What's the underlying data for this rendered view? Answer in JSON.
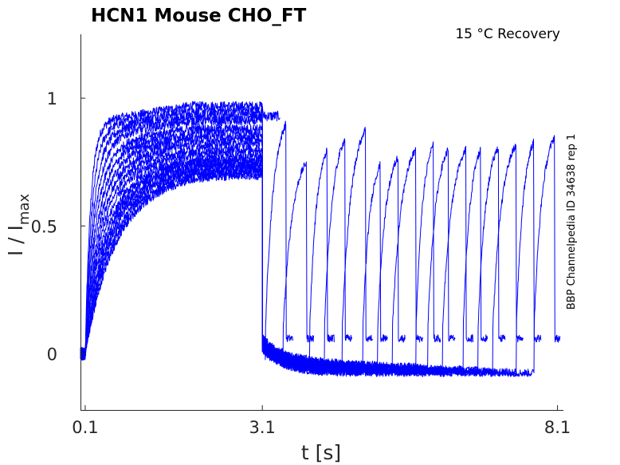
{
  "chart_data": {
    "type": "line",
    "title": "HCN1  Mouse  CHO_FT",
    "annotation": "15 °C  Recovery",
    "side_label": "BBP Channelpedia ID 34638 rep 1",
    "xlabel": "t [s]",
    "ylabel": "I / I",
    "ylabel_sub": "max",
    "x_ticks": [
      {
        "value": 0.1,
        "label": "0.1"
      },
      {
        "value": 3.1,
        "label": "3.1"
      },
      {
        "value": 8.1,
        "label": "8.1"
      }
    ],
    "y_ticks": [
      {
        "value": 0,
        "label": "0"
      },
      {
        "value": 0.5,
        "label": "0.5"
      },
      {
        "value": 1,
        "label": "1"
      }
    ],
    "xlim": [
      0.02,
      8.2
    ],
    "ylim": [
      -0.22,
      1.25
    ],
    "line_color": "#0000ff",
    "series": [
      {
        "prepulse_plateau": 0.97,
        "recovery_end": 3.1,
        "recovery_level": 0.93
      },
      {
        "prepulse_plateau": 0.95,
        "recovery_end": 3.5,
        "recovery_level": 0.9
      },
      {
        "prepulse_plateau": 0.93,
        "recovery_end": 3.85,
        "recovery_level": 0.75
      },
      {
        "prepulse_plateau": 0.91,
        "recovery_end": 4.2,
        "recovery_level": 0.8
      },
      {
        "prepulse_plateau": 0.88,
        "recovery_end": 4.5,
        "recovery_level": 0.84
      },
      {
        "prepulse_plateau": 0.86,
        "recovery_end": 4.85,
        "recovery_level": 0.88
      },
      {
        "prepulse_plateau": 0.84,
        "recovery_end": 5.1,
        "recovery_level": 0.74
      },
      {
        "prepulse_plateau": 0.82,
        "recovery_end": 5.4,
        "recovery_level": 0.77
      },
      {
        "prepulse_plateau": 0.8,
        "recovery_end": 5.7,
        "recovery_level": 0.8
      },
      {
        "prepulse_plateau": 0.78,
        "recovery_end": 6.0,
        "recovery_level": 0.82
      },
      {
        "prepulse_plateau": 0.76,
        "recovery_end": 6.25,
        "recovery_level": 0.8
      },
      {
        "prepulse_plateau": 0.75,
        "recovery_end": 6.55,
        "recovery_level": 0.8
      },
      {
        "prepulse_plateau": 0.74,
        "recovery_end": 6.8,
        "recovery_level": 0.8
      },
      {
        "prepulse_plateau": 0.73,
        "recovery_end": 7.1,
        "recovery_level": 0.81
      },
      {
        "prepulse_plateau": 0.72,
        "recovery_end": 7.4,
        "recovery_level": 0.82
      },
      {
        "prepulse_plateau": 0.71,
        "recovery_end": 7.7,
        "recovery_level": 0.83
      },
      {
        "prepulse_plateau": 0.7,
        "recovery_end": 8.05,
        "recovery_level": 0.85
      }
    ]
  }
}
